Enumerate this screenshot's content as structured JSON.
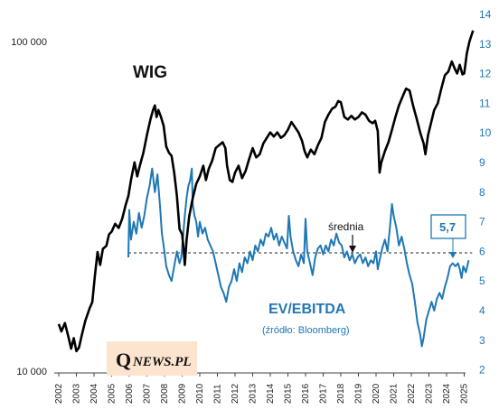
{
  "chart_data": {
    "type": "line",
    "title": "",
    "xlabel": "",
    "ylabel": "",
    "x_ticks": [
      "2002",
      "2003",
      "2004",
      "2005",
      "2006",
      "2007",
      "2008",
      "2009",
      "2010",
      "2011",
      "2012",
      "2013",
      "2014",
      "2015",
      "2016",
      "2017",
      "2018",
      "2019",
      "2020",
      "2021",
      "2022",
      "2023",
      "2024",
      "2025"
    ],
    "left_axis": {
      "scale": "log",
      "range": [
        10000,
        100000
      ],
      "ticks": [
        10000,
        100000
      ],
      "tick_labels": [
        "10 000",
        "100 000"
      ]
    },
    "right_axis": {
      "scale": "linear",
      "range": [
        2,
        14
      ],
      "ticks": [
        2,
        3,
        4,
        5,
        6,
        7,
        8,
        9,
        10,
        11,
        12,
        13,
        14
      ]
    },
    "series": [
      {
        "name": "WIG",
        "axis": "left",
        "color": "#000000",
        "points": [
          [
            2002.0,
            13900
          ],
          [
            2002.15,
            13200
          ],
          [
            2002.35,
            14000
          ],
          [
            2002.55,
            12700
          ],
          [
            2002.7,
            11700
          ],
          [
            2002.85,
            12600
          ],
          [
            2003.0,
            11500
          ],
          [
            2003.15,
            11800
          ],
          [
            2003.3,
            12800
          ],
          [
            2003.5,
            14200
          ],
          [
            2003.75,
            15500
          ],
          [
            2003.9,
            16200
          ],
          [
            2004.05,
            19500
          ],
          [
            2004.2,
            23000
          ],
          [
            2004.35,
            21000
          ],
          [
            2004.5,
            23500
          ],
          [
            2004.7,
            24000
          ],
          [
            2004.85,
            26000
          ],
          [
            2005.0,
            26500
          ],
          [
            2005.2,
            28000
          ],
          [
            2005.4,
            27200
          ],
          [
            2005.6,
            29000
          ],
          [
            2005.8,
            32000
          ],
          [
            2005.95,
            34000
          ],
          [
            2006.1,
            38000
          ],
          [
            2006.3,
            43000
          ],
          [
            2006.45,
            39000
          ],
          [
            2006.6,
            42000
          ],
          [
            2006.8,
            46000
          ],
          [
            2007.0,
            52000
          ],
          [
            2007.2,
            58000
          ],
          [
            2007.35,
            62000
          ],
          [
            2007.45,
            64000
          ],
          [
            2007.55,
            59000
          ],
          [
            2007.65,
            62000
          ],
          [
            2007.8,
            59000
          ],
          [
            2007.95,
            55500
          ],
          [
            2008.1,
            48000
          ],
          [
            2008.25,
            46000
          ],
          [
            2008.4,
            45000
          ],
          [
            2008.55,
            40000
          ],
          [
            2008.7,
            34000
          ],
          [
            2008.85,
            27000
          ],
          [
            2009.0,
            26000
          ],
          [
            2009.1,
            23000
          ],
          [
            2009.15,
            21000
          ],
          [
            2009.25,
            25000
          ],
          [
            2009.4,
            29500
          ],
          [
            2009.6,
            33500
          ],
          [
            2009.8,
            37000
          ],
          [
            2010.0,
            39000
          ],
          [
            2010.2,
            42000
          ],
          [
            2010.35,
            38000
          ],
          [
            2010.5,
            41000
          ],
          [
            2010.7,
            43500
          ],
          [
            2010.9,
            47500
          ],
          [
            2011.1,
            48500
          ],
          [
            2011.3,
            49500
          ],
          [
            2011.45,
            47500
          ],
          [
            2011.55,
            42000
          ],
          [
            2011.7,
            38000
          ],
          [
            2011.85,
            37500
          ],
          [
            2012.0,
            40000
          ],
          [
            2012.2,
            42000
          ],
          [
            2012.4,
            38500
          ],
          [
            2012.6,
            40500
          ],
          [
            2012.8,
            44000
          ],
          [
            2013.0,
            47500
          ],
          [
            2013.2,
            44500
          ],
          [
            2013.4,
            45500
          ],
          [
            2013.6,
            49000
          ],
          [
            2013.8,
            51000
          ],
          [
            2014.0,
            53000
          ],
          [
            2014.2,
            51500
          ],
          [
            2014.4,
            53000
          ],
          [
            2014.6,
            51000
          ],
          [
            2014.8,
            52000
          ],
          [
            2015.0,
            54000
          ],
          [
            2015.2,
            57000
          ],
          [
            2015.4,
            55000
          ],
          [
            2015.6,
            53000
          ],
          [
            2015.8,
            50000
          ],
          [
            2015.95,
            46500
          ],
          [
            2016.1,
            44500
          ],
          [
            2016.3,
            47000
          ],
          [
            2016.5,
            45500
          ],
          [
            2016.7,
            48500
          ],
          [
            2016.9,
            51000
          ],
          [
            2017.1,
            57000
          ],
          [
            2017.3,
            60000
          ],
          [
            2017.5,
            62500
          ],
          [
            2017.7,
            63500
          ],
          [
            2017.85,
            66000
          ],
          [
            2018.0,
            65500
          ],
          [
            2018.2,
            59000
          ],
          [
            2018.4,
            58000
          ],
          [
            2018.6,
            59500
          ],
          [
            2018.8,
            58000
          ],
          [
            2019.0,
            59000
          ],
          [
            2019.2,
            61000
          ],
          [
            2019.4,
            60000
          ],
          [
            2019.6,
            57500
          ],
          [
            2019.8,
            56500
          ],
          [
            2019.95,
            57500
          ],
          [
            2020.1,
            53500
          ],
          [
            2020.2,
            40000
          ],
          [
            2020.3,
            43000
          ],
          [
            2020.5,
            46500
          ],
          [
            2020.7,
            49500
          ],
          [
            2020.9,
            54000
          ],
          [
            2021.1,
            59000
          ],
          [
            2021.3,
            64000
          ],
          [
            2021.5,
            68000
          ],
          [
            2021.7,
            72000
          ],
          [
            2021.9,
            71000
          ],
          [
            2022.1,
            64000
          ],
          [
            2022.3,
            58500
          ],
          [
            2022.5,
            53000
          ],
          [
            2022.7,
            49000
          ],
          [
            2022.8,
            45500
          ],
          [
            2022.95,
            52000
          ],
          [
            2023.1,
            56000
          ],
          [
            2023.3,
            62000
          ],
          [
            2023.5,
            65000
          ],
          [
            2023.7,
            72000
          ],
          [
            2023.9,
            79000
          ],
          [
            2024.1,
            81000
          ],
          [
            2024.3,
            87000
          ],
          [
            2024.45,
            83000
          ],
          [
            2024.6,
            80000
          ],
          [
            2024.75,
            85000
          ],
          [
            2024.9,
            79500
          ],
          [
            2025.0,
            80000
          ],
          [
            2025.15,
            92000
          ],
          [
            2025.3,
            100000
          ],
          [
            2025.5,
            108000
          ]
        ]
      },
      {
        "name": "EV/EBITDA",
        "axis": "right",
        "color": "#1f78b4",
        "points": [
          [
            2005.95,
            5.8
          ],
          [
            2006.0,
            7.4
          ],
          [
            2006.1,
            6.4
          ],
          [
            2006.25,
            7.0
          ],
          [
            2006.4,
            6.6
          ],
          [
            2006.55,
            7.3
          ],
          [
            2006.7,
            6.8
          ],
          [
            2006.85,
            7.2
          ],
          [
            2007.0,
            7.8
          ],
          [
            2007.15,
            8.2
          ],
          [
            2007.3,
            8.8
          ],
          [
            2007.45,
            8.0
          ],
          [
            2007.6,
            8.6
          ],
          [
            2007.75,
            7.5
          ],
          [
            2007.85,
            6.6
          ],
          [
            2007.95,
            6.2
          ],
          [
            2008.1,
            5.5
          ],
          [
            2008.25,
            5.2
          ],
          [
            2008.4,
            5.0
          ],
          [
            2008.55,
            5.5
          ],
          [
            2008.7,
            6.0
          ],
          [
            2008.85,
            5.6
          ],
          [
            2008.95,
            5.8
          ],
          [
            2009.05,
            6.5
          ],
          [
            2009.15,
            7.2
          ],
          [
            2009.25,
            7.8
          ],
          [
            2009.35,
            8.2
          ],
          [
            2009.45,
            8.4
          ],
          [
            2009.55,
            8.8
          ],
          [
            2009.6,
            7.6
          ],
          [
            2009.7,
            7.2
          ],
          [
            2009.8,
            7.0
          ],
          [
            2009.9,
            6.5
          ],
          [
            2010.0,
            7.0
          ],
          [
            2010.15,
            6.6
          ],
          [
            2010.3,
            6.8
          ],
          [
            2010.45,
            6.4
          ],
          [
            2010.6,
            6.2
          ],
          [
            2010.75,
            6.0
          ],
          [
            2010.9,
            5.6
          ],
          [
            2011.05,
            5.2
          ],
          [
            2011.2,
            4.8
          ],
          [
            2011.35,
            4.6
          ],
          [
            2011.5,
            4.3
          ],
          [
            2011.65,
            4.8
          ],
          [
            2011.8,
            5.0
          ],
          [
            2011.95,
            5.4
          ],
          [
            2012.1,
            5.0
          ],
          [
            2012.25,
            5.6
          ],
          [
            2012.4,
            5.3
          ],
          [
            2012.55,
            5.8
          ],
          [
            2012.7,
            5.6
          ],
          [
            2012.85,
            6.0
          ],
          [
            2013.0,
            5.7
          ],
          [
            2013.15,
            6.2
          ],
          [
            2013.3,
            6.0
          ],
          [
            2013.45,
            6.4
          ],
          [
            2013.6,
            6.2
          ],
          [
            2013.75,
            6.6
          ],
          [
            2013.9,
            6.5
          ],
          [
            2014.05,
            6.8
          ],
          [
            2014.2,
            6.4
          ],
          [
            2014.35,
            6.6
          ],
          [
            2014.5,
            6.2
          ],
          [
            2014.65,
            6.5
          ],
          [
            2014.8,
            6.3
          ],
          [
            2014.95,
            6.1
          ],
          [
            2015.05,
            7.2
          ],
          [
            2015.15,
            6.5
          ],
          [
            2015.3,
            6.0
          ],
          [
            2015.45,
            5.7
          ],
          [
            2015.6,
            5.5
          ],
          [
            2015.75,
            5.9
          ],
          [
            2015.9,
            5.6
          ],
          [
            2016.0,
            7.1
          ],
          [
            2016.1,
            6.0
          ],
          [
            2016.25,
            5.6
          ],
          [
            2016.4,
            5.2
          ],
          [
            2016.55,
            5.8
          ],
          [
            2016.7,
            6.1
          ],
          [
            2016.85,
            6.2
          ],
          [
            2017.0,
            5.9
          ],
          [
            2017.15,
            6.2
          ],
          [
            2017.3,
            6.0
          ],
          [
            2017.45,
            6.4
          ],
          [
            2017.6,
            6.2
          ],
          [
            2017.75,
            6.6
          ],
          [
            2017.9,
            6.3
          ],
          [
            2018.05,
            6.2
          ],
          [
            2018.2,
            5.8
          ],
          [
            2018.35,
            6.0
          ],
          [
            2018.5,
            5.7
          ],
          [
            2018.65,
            5.9
          ],
          [
            2018.8,
            5.6
          ],
          [
            2018.95,
            5.8
          ],
          [
            2019.1,
            5.9
          ],
          [
            2019.25,
            5.6
          ],
          [
            2019.4,
            5.8
          ],
          [
            2019.55,
            5.5
          ],
          [
            2019.7,
            5.7
          ],
          [
            2019.85,
            5.6
          ],
          [
            2020.0,
            6.0
          ],
          [
            2020.1,
            5.4
          ],
          [
            2020.2,
            5.7
          ],
          [
            2020.35,
            6.1
          ],
          [
            2020.5,
            6.4
          ],
          [
            2020.65,
            6.0
          ],
          [
            2020.8,
            6.9
          ],
          [
            2020.9,
            7.6
          ],
          [
            2021.0,
            7.2
          ],
          [
            2021.15,
            6.8
          ],
          [
            2021.3,
            6.2
          ],
          [
            2021.45,
            6.5
          ],
          [
            2021.6,
            6.1
          ],
          [
            2021.75,
            5.6
          ],
          [
            2021.9,
            5.2
          ],
          [
            2022.05,
            4.9
          ],
          [
            2022.2,
            4.3
          ],
          [
            2022.35,
            3.6
          ],
          [
            2022.5,
            3.2
          ],
          [
            2022.6,
            2.8
          ],
          [
            2022.7,
            3.1
          ],
          [
            2022.85,
            3.7
          ],
          [
            2023.0,
            4.0
          ],
          [
            2023.15,
            4.3
          ],
          [
            2023.3,
            4.0
          ],
          [
            2023.45,
            4.4
          ],
          [
            2023.6,
            4.6
          ],
          [
            2023.75,
            4.4
          ],
          [
            2023.9,
            4.8
          ],
          [
            2024.05,
            5.1
          ],
          [
            2024.2,
            5.5
          ],
          [
            2024.35,
            5.6
          ],
          [
            2024.5,
            5.5
          ],
          [
            2024.65,
            5.6
          ],
          [
            2024.75,
            5.4
          ],
          [
            2024.85,
            5.1
          ],
          [
            2024.95,
            5.5
          ],
          [
            2025.1,
            5.3
          ],
          [
            2025.25,
            5.7
          ]
        ]
      }
    ],
    "average": {
      "label": "średnia",
      "value": 5.95,
      "axis": "right",
      "style": "dashed"
    },
    "annotations": {
      "wig_label": "WIG",
      "ev_label": "EV/EBITDA",
      "source_label": "(źródło: Bloomberg)",
      "last_value_label": "5,7"
    },
    "grid": false,
    "legend": "none"
  },
  "logo": {
    "q": "Q",
    "rest": "NEWS.PL"
  }
}
